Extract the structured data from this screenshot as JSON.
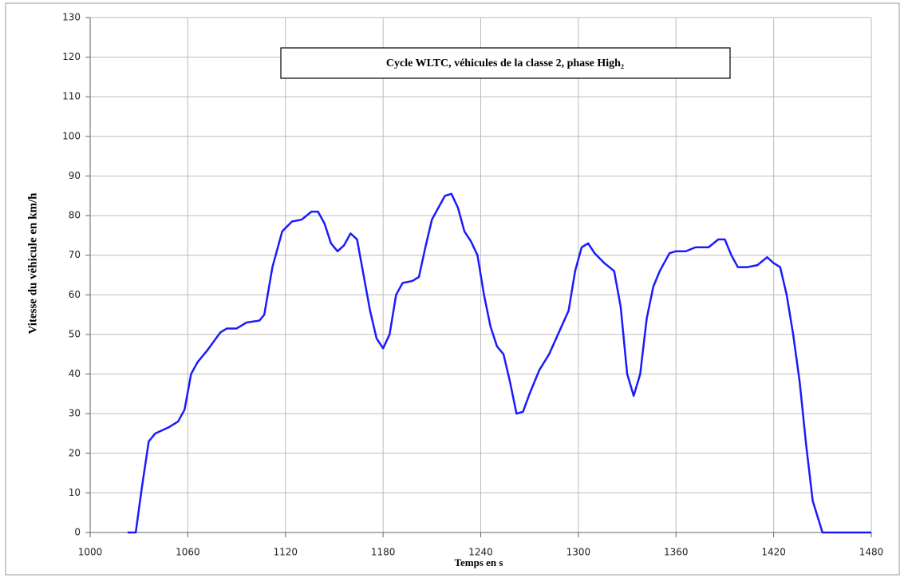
{
  "chart_data": {
    "type": "line",
    "title": "Cycle WLTC, véhicules de la classe 2, phase High₂",
    "x_label": "Temps en s",
    "y_label": "Vitesse du véhicule en km/h",
    "xlim": [
      1000,
      1480
    ],
    "xticks": [
      1000,
      1060,
      1120,
      1180,
      1240,
      1300,
      1360,
      1420,
      1480
    ],
    "ylim": [
      0,
      130
    ],
    "yticks": [
      0,
      10,
      20,
      30,
      40,
      50,
      60,
      70,
      80,
      90,
      100,
      110,
      120,
      130
    ],
    "grid": true,
    "series": [
      {
        "name": "Vitesse",
        "color": "#1a1aff",
        "x": [
          1023,
          1028,
          1032,
          1036,
          1040,
          1048,
          1054,
          1058,
          1062,
          1066,
          1072,
          1080,
          1084,
          1090,
          1096,
          1104,
          1107,
          1112,
          1118,
          1124,
          1130,
          1136,
          1140,
          1144,
          1148,
          1152,
          1156,
          1160,
          1164,
          1168,
          1172,
          1176,
          1180,
          1184,
          1188,
          1192,
          1198,
          1202,
          1206,
          1210,
          1214,
          1218,
          1222,
          1226,
          1230,
          1234,
          1238,
          1242,
          1246,
          1250,
          1254,
          1258,
          1262,
          1266,
          1270,
          1276,
          1282,
          1288,
          1294,
          1298,
          1302,
          1306,
          1310,
          1316,
          1322,
          1326,
          1330,
          1334,
          1338,
          1342,
          1346,
          1350,
          1356,
          1360,
          1366,
          1372,
          1380,
          1386,
          1390,
          1394,
          1398,
          1404,
          1410,
          1416,
          1420,
          1424,
          1428,
          1432,
          1436,
          1440,
          1444,
          1450,
          1480
        ],
        "values": [
          0,
          0,
          12,
          23,
          25,
          26.5,
          28,
          31,
          40,
          43,
          46,
          50.5,
          51.5,
          51.5,
          53,
          53.5,
          55,
          67,
          76,
          78.5,
          79,
          81,
          81,
          78,
          73,
          71,
          72.5,
          75.5,
          74,
          65,
          56,
          49,
          46.5,
          50,
          60,
          63,
          63.5,
          64.5,
          72,
          79,
          82,
          85,
          85.5,
          82,
          76,
          73.5,
          70,
          60,
          52,
          47,
          45,
          38,
          30,
          30.5,
          35,
          41,
          45,
          50.5,
          56,
          66,
          72,
          73,
          70.5,
          68,
          66,
          57,
          40,
          34.5,
          40,
          54,
          62,
          66,
          70.5,
          71,
          71,
          72,
          72,
          74,
          74,
          70,
          67,
          67,
          67.5,
          69.5,
          68,
          67,
          60,
          50,
          38,
          22,
          8,
          0,
          0
        ]
      }
    ]
  }
}
